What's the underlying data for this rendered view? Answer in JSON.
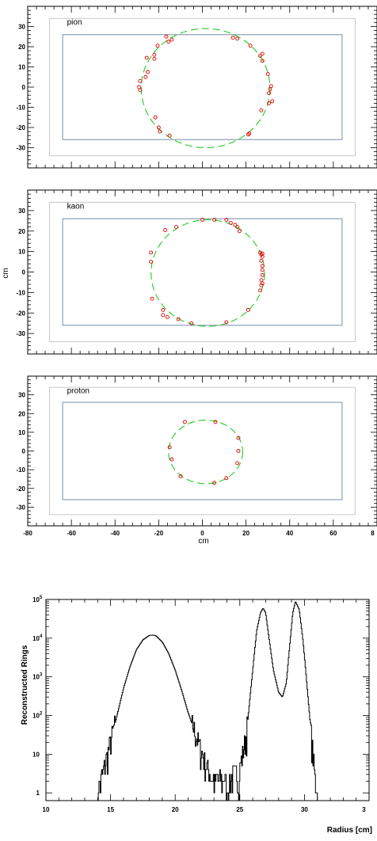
{
  "ring_panels": {
    "ylabel": "cm",
    "xlabel": "cm",
    "xticks": [
      "-80",
      "-60",
      "-40",
      "-20",
      "0",
      "20",
      "40",
      "60",
      "8"
    ],
    "yticks": [
      "30",
      "20",
      "10",
      "0",
      "-10",
      "-20",
      "-30"
    ],
    "colors": {
      "hit": "#e00000",
      "ring": "#22cc22",
      "outer_box": "#c8c8c8",
      "inner_box": "#8ea0b4"
    }
  },
  "radius_hist": {
    "ylabel": "Reconstructed Rings",
    "xlabel": "Radius [cm]",
    "xticks": [
      "10",
      "15",
      "20",
      "25",
      "30",
      "3"
    ],
    "yticks": [
      "10",
      "10",
      "10",
      "10",
      "10",
      "1"
    ],
    "yexp": [
      "5",
      "4",
      "3",
      "2",
      ""
    ]
  },
  "chart_data": [
    {
      "type": "scatter",
      "title": "pion",
      "xlim": [
        -80,
        80
      ],
      "ylim": [
        -40,
        40
      ],
      "outer_box": {
        "x": [
          -70,
          70
        ],
        "y": [
          -34,
          34
        ]
      },
      "inner_box": {
        "x": [
          -64,
          64
        ],
        "y": [
          -26,
          26
        ]
      },
      "ring": {
        "cx": 1.5,
        "cy": -0.5,
        "r": 29.5
      },
      "hits": [
        [
          -16.5,
          25
        ],
        [
          -15.5,
          22.5
        ],
        [
          -14,
          23.5
        ],
        [
          -20.5,
          20.5
        ],
        [
          -22,
          16
        ],
        [
          -22,
          14
        ],
        [
          -25.5,
          14.5
        ],
        [
          -25,
          7.5
        ],
        [
          -26,
          5
        ],
        [
          -28.5,
          3
        ],
        [
          -29,
          0
        ],
        [
          -28.5,
          -1.5
        ],
        [
          -21.5,
          -15
        ],
        [
          -20,
          -20
        ],
        [
          -19.5,
          -22
        ],
        [
          -15,
          -24
        ],
        [
          14,
          24.5
        ],
        [
          16,
          24
        ],
        [
          22,
          20.5
        ],
        [
          26.5,
          15.5
        ],
        [
          27.5,
          16.5
        ],
        [
          27.5,
          13
        ],
        [
          30,
          6.5
        ],
        [
          31.5,
          0.5
        ],
        [
          31,
          -1
        ],
        [
          30.5,
          -3
        ],
        [
          32,
          -7
        ],
        [
          30.5,
          -8
        ],
        [
          27,
          -11.5
        ],
        [
          21.5,
          -23
        ],
        [
          21,
          -23.5
        ]
      ]
    },
    {
      "type": "scatter",
      "title": "kaon",
      "xlim": [
        -80,
        80
      ],
      "ylim": [
        -40,
        40
      ],
      "outer_box": {
        "x": [
          -70,
          70
        ],
        "y": [
          -34,
          34
        ]
      },
      "inner_box": {
        "x": [
          -64,
          64
        ],
        "y": [
          -26,
          26
        ]
      },
      "ring": {
        "cx": 2.5,
        "cy": -0.5,
        "r": 26
      },
      "hits": [
        [
          -17,
          20.5
        ],
        [
          -12,
          22
        ],
        [
          0,
          25.5
        ],
        [
          5.5,
          25.5
        ],
        [
          11,
          25.5
        ],
        [
          13,
          24
        ],
        [
          15,
          23
        ],
        [
          16,
          22
        ],
        [
          17,
          20
        ],
        [
          -23.5,
          9.5
        ],
        [
          -23.5,
          5
        ],
        [
          26.5,
          9.5
        ],
        [
          27,
          8.5
        ],
        [
          27.5,
          9
        ],
        [
          27.5,
          7.5
        ],
        [
          27,
          5.5
        ],
        [
          27.5,
          3
        ],
        [
          27.5,
          1
        ],
        [
          27.5,
          -1.5
        ],
        [
          27,
          -4
        ],
        [
          27.5,
          -5.5
        ],
        [
          27,
          -6.5
        ],
        [
          26.5,
          -9
        ],
        [
          21,
          -18.5
        ],
        [
          -23,
          -13
        ],
        [
          -18,
          -18.5
        ],
        [
          -18,
          -21
        ],
        [
          -16,
          -22
        ],
        [
          -11,
          -23
        ],
        [
          -5,
          -25
        ],
        [
          11,
          -24.5
        ]
      ]
    },
    {
      "type": "scatter",
      "title": "proton",
      "xlim": [
        -80,
        80
      ],
      "ylim": [
        -40,
        40
      ],
      "outer_box": {
        "x": [
          -70,
          70
        ],
        "y": [
          -34,
          34
        ]
      },
      "inner_box": {
        "x": [
          -64,
          64
        ],
        "y": [
          -26,
          26
        ]
      },
      "ring": {
        "cx": 1.5,
        "cy": -0.5,
        "r": 17
      },
      "hits": [
        [
          -8,
          15.5
        ],
        [
          6,
          15.5
        ],
        [
          16.5,
          7
        ],
        [
          -15,
          2
        ],
        [
          16.5,
          0
        ],
        [
          -14,
          -4.5
        ],
        [
          16,
          -6.5
        ],
        [
          -10,
          -13.5
        ],
        [
          11,
          -14.5
        ],
        [
          5.5,
          -17
        ]
      ]
    },
    {
      "type": "line",
      "xlabel": "Radius [cm]",
      "ylabel": "Reconstructed Rings",
      "xlim": [
        10,
        35
      ],
      "ylim": [
        0.5,
        150000
      ],
      "log_y": true,
      "peaks": [
        {
          "center": 18.3,
          "height": 12000
        },
        {
          "center": 26.8,
          "height": 60000
        },
        {
          "center": 29.3,
          "height": 90000
        }
      ],
      "x": [
        14.0,
        14.5,
        15.0,
        15.5,
        16.0,
        16.5,
        17.0,
        17.5,
        18.0,
        18.3,
        18.5,
        19.0,
        19.5,
        20.0,
        20.5,
        21.0,
        21.5,
        22.0,
        22.5,
        23.0,
        24.0,
        25.0,
        25.5,
        26.0,
        26.3,
        26.6,
        26.8,
        27.0,
        27.3,
        27.6,
        28.0,
        28.3,
        28.6,
        28.9,
        29.1,
        29.3,
        29.6,
        29.9,
        30.2,
        30.5,
        30.8,
        31.0
      ],
      "y": [
        1,
        4,
        20,
        100,
        500,
        1800,
        5000,
        9000,
        11800,
        12000,
        11600,
        8000,
        4000,
        1500,
        450,
        120,
        40,
        12,
        4,
        2,
        2,
        4,
        30,
        1500,
        15000,
        45000,
        60000,
        45000,
        8000,
        1500,
        400,
        300,
        700,
        9000,
        45000,
        90000,
        55000,
        8000,
        600,
        40,
        3,
        1
      ]
    }
  ]
}
